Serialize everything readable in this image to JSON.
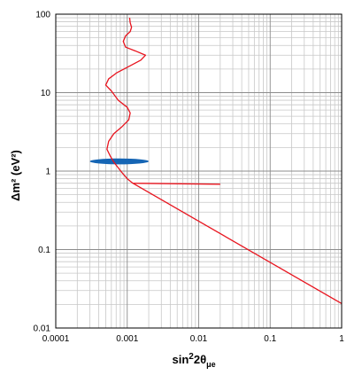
{
  "chart_data": {
    "type": "line",
    "title": "",
    "xlabel": "sin²2θμe",
    "xlabel_parts": {
      "base": "sin",
      "sup": "2",
      "mid": "2θ",
      "sub": "μe"
    },
    "ylabel": "Δm² (eV²)",
    "xscale": "log",
    "yscale": "log",
    "xlim": [
      0.0001,
      1
    ],
    "ylim": [
      0.01,
      100
    ],
    "grid": true,
    "x_ticks": [
      "0.0001",
      "0.001",
      "0.01",
      "0.1",
      "1"
    ],
    "y_ticks": [
      "0.01",
      "0.1",
      "1",
      "10",
      "100"
    ],
    "series": [
      {
        "color": "#e8141e",
        "points": [
          [
            0.02,
            0.68
          ],
          [
            0.0012,
            0.7
          ],
          [
            0.001,
            0.8
          ],
          [
            0.00085,
            0.95
          ],
          [
            0.00075,
            1.1
          ],
          [
            0.00065,
            1.3
          ],
          [
            0.00058,
            1.55
          ],
          [
            0.00052,
            1.9
          ],
          [
            0.00055,
            2.4
          ],
          [
            0.00065,
            3.0
          ],
          [
            0.00085,
            3.7
          ],
          [
            0.00105,
            4.5
          ],
          [
            0.0011,
            5.5
          ],
          [
            0.001,
            6.5
          ],
          [
            0.00075,
            8.0
          ],
          [
            0.0006,
            10.5
          ],
          [
            0.0005,
            12.5
          ],
          [
            0.00055,
            15.0
          ],
          [
            0.00072,
            18.0
          ],
          [
            0.0011,
            22.0
          ],
          [
            0.00155,
            26.0
          ],
          [
            0.0018,
            30.0
          ],
          [
            0.0013,
            34.0
          ],
          [
            0.00095,
            38.0
          ],
          [
            0.00088,
            45.0
          ],
          [
            0.00095,
            53.0
          ],
          [
            0.0011,
            60.0
          ],
          [
            0.00115,
            68.0
          ],
          [
            0.0011,
            78.0
          ],
          [
            0.00108,
            90.0
          ]
        ],
        "tail": [
          [
            0.0012,
            0.7
          ],
          [
            1,
            0.0205
          ]
        ]
      }
    ],
    "region": {
      "type": "ellipse",
      "color": "#1565b4",
      "x_range": [
        0.0003,
        0.002
      ],
      "y_center": 1.33,
      "y_range": [
        1.22,
        1.45
      ]
    }
  }
}
